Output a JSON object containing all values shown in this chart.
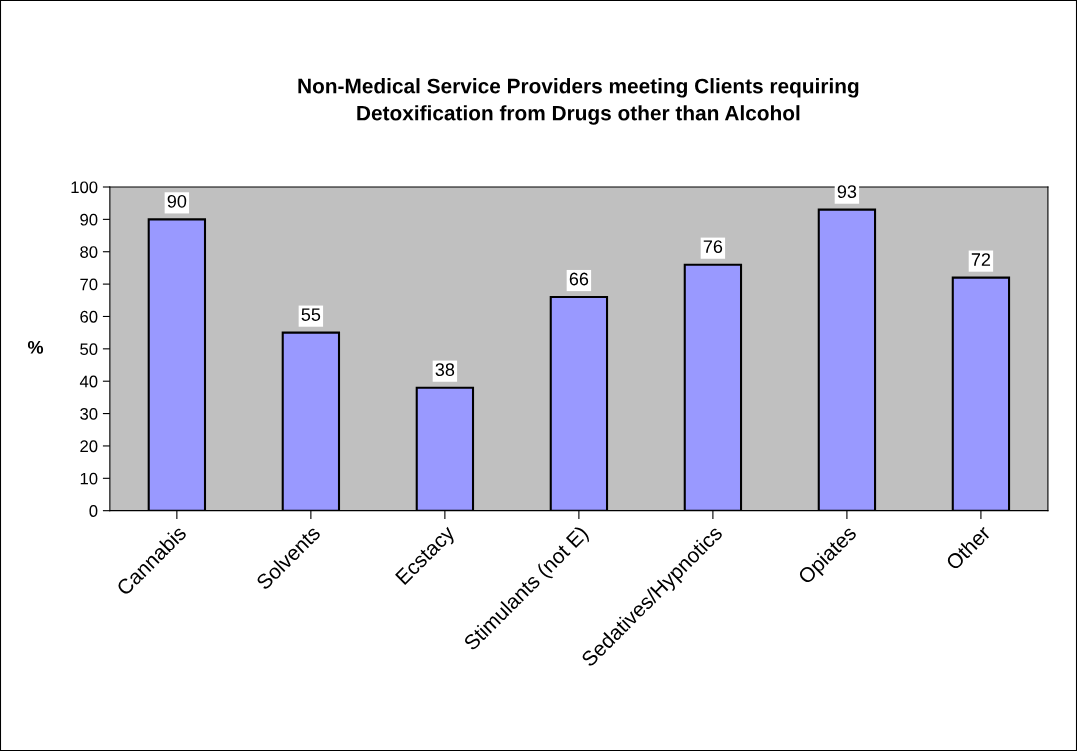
{
  "chart_data": {
    "type": "bar",
    "title": "Non-Medical Service Providers meeting Clients requiring\nDetoxification from Drugs other than Alcohol",
    "ylabel": "%",
    "categories": [
      "Cannabis",
      "Solvents",
      "Ecstacy",
      "Stimulants (not E)",
      "Sedatives/Hypnotics",
      "Opiates",
      "Other"
    ],
    "values": [
      90,
      55,
      38,
      66,
      76,
      93,
      72
    ],
    "color": "#9999ff",
    "ylim": [
      0,
      100
    ],
    "yticks": [
      0,
      10,
      20,
      30,
      40,
      50,
      60,
      70,
      80,
      90,
      100
    ],
    "grid": false,
    "legend": false,
    "data_labels": true
  }
}
